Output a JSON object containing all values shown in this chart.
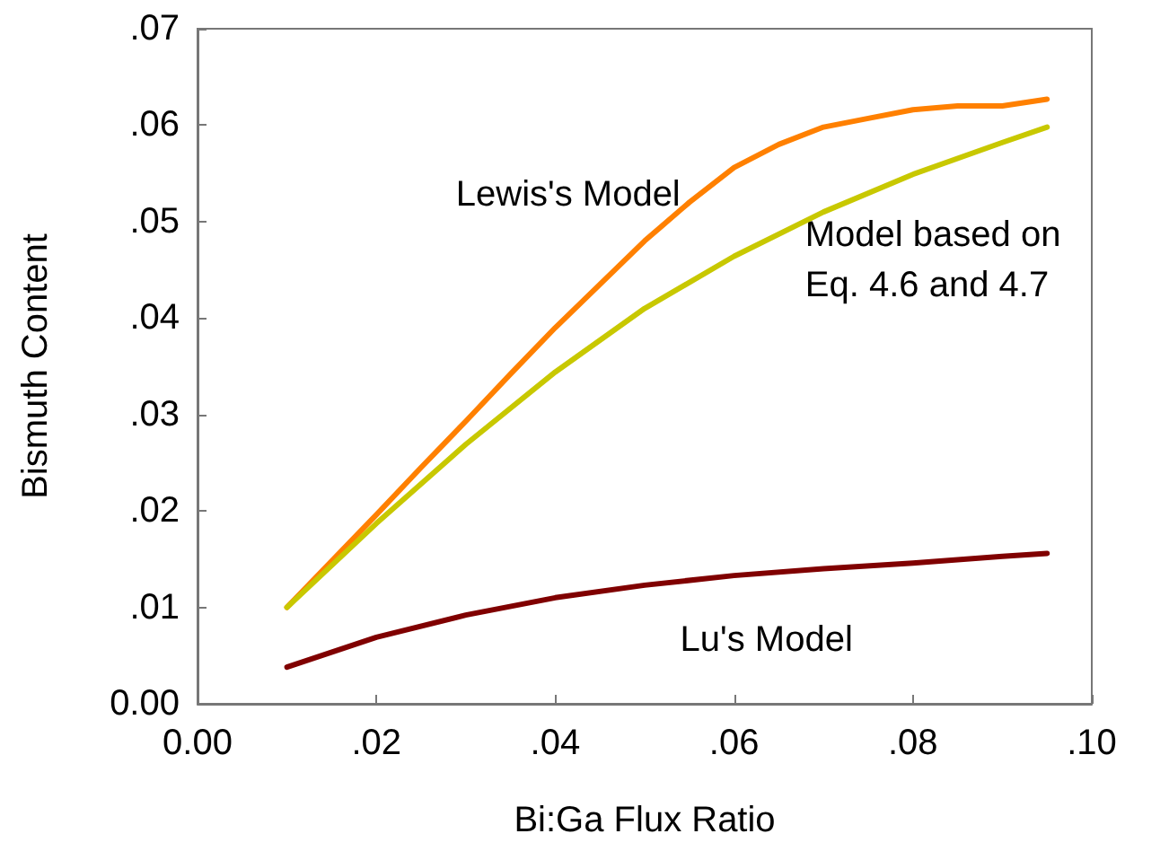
{
  "chart_data": {
    "type": "line",
    "xlabel": "Bi:Ga Flux Ratio",
    "ylabel": "Bismuth Content",
    "xlim": [
      0,
      0.1
    ],
    "ylim": [
      0,
      0.07
    ],
    "xticks": [
      {
        "value": 0,
        "label": "0.00"
      },
      {
        "value": 0.02,
        "label": ".02"
      },
      {
        "value": 0.04,
        "label": ".04"
      },
      {
        "value": 0.06,
        "label": ".06"
      },
      {
        "value": 0.08,
        "label": ".08"
      },
      {
        "value": 0.1,
        "label": ".10"
      }
    ],
    "yticks": [
      {
        "value": 0,
        "label": "0.00"
      },
      {
        "value": 0.01,
        "label": ".01"
      },
      {
        "value": 0.02,
        "label": ".02"
      },
      {
        "value": 0.03,
        "label": ".03"
      },
      {
        "value": 0.04,
        "label": ".04"
      },
      {
        "value": 0.05,
        "label": ".05"
      },
      {
        "value": 0.06,
        "label": ".06"
      },
      {
        "value": 0.07,
        "label": ".07"
      }
    ],
    "grid": false,
    "legend": false,
    "marker": "none",
    "line_style": "solid",
    "series": [
      {
        "name": "Lewis's Model",
        "color": "#ff8000",
        "x": [
          0.01,
          0.02,
          0.025,
          0.03,
          0.035,
          0.04,
          0.05,
          0.055,
          0.06,
          0.065,
          0.07,
          0.075,
          0.08,
          0.085,
          0.09,
          0.095
        ],
        "values": [
          0.01,
          0.0196,
          0.0245,
          0.0293,
          0.0342,
          0.039,
          0.048,
          0.052,
          0.0556,
          0.058,
          0.0598,
          0.0607,
          0.0616,
          0.062,
          0.062,
          0.0627
        ]
      },
      {
        "name": "Model based on\nEq. 4.6 and 4.7",
        "color": "#c8c800",
        "x": [
          0.01,
          0.02,
          0.03,
          0.04,
          0.05,
          0.06,
          0.07,
          0.08,
          0.09,
          0.095
        ],
        "values": [
          0.01,
          0.0187,
          0.0269,
          0.0344,
          0.041,
          0.0464,
          0.051,
          0.0549,
          0.0582,
          0.0598
        ]
      },
      {
        "name": "Lu's Model",
        "color": "#800000",
        "x": [
          0.01,
          0.02,
          0.03,
          0.04,
          0.05,
          0.06,
          0.07,
          0.08,
          0.09,
          0.095
        ],
        "values": [
          0.0038,
          0.0069,
          0.0092,
          0.011,
          0.0123,
          0.0133,
          0.014,
          0.0146,
          0.0153,
          0.0156
        ]
      }
    ]
  }
}
